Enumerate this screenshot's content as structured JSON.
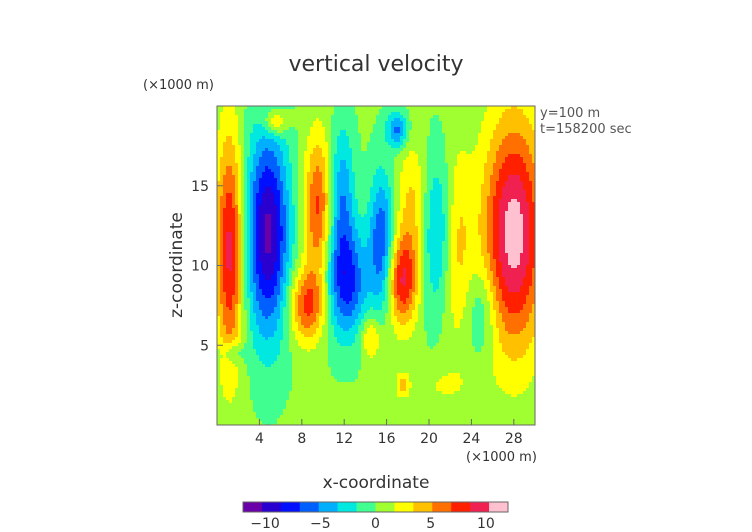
{
  "chart_data": {
    "type": "heatmap",
    "title": "vertical velocity",
    "xlabel": "x-coordinate",
    "ylabel": "z-coordinate",
    "x_unit_label": "(×1000 m)",
    "y_unit_label": "(×1000 m)",
    "annotations": [
      "y=100 m",
      "t=158200 sec"
    ],
    "xlim": [
      0,
      30
    ],
    "ylim": [
      0,
      20
    ],
    "x_ticks": [
      4,
      8,
      12,
      16,
      20,
      24,
      28
    ],
    "y_ticks": [
      5,
      10,
      15
    ],
    "colorbar": {
      "range": [
        -12,
        12
      ],
      "ticks": [
        -10,
        -5,
        0,
        5,
        10
      ],
      "colors": [
        "#6a00a8",
        "#2a00d0",
        "#0010ff",
        "#0060ff",
        "#00b0ff",
        "#00e8e0",
        "#40ff90",
        "#a0ff30",
        "#ffff00",
        "#ffc000",
        "#ff7000",
        "#ff2000",
        "#f02050",
        "#ffc0d0"
      ]
    },
    "features": [
      {
        "x": 4.8,
        "z": 12.0,
        "value": -11,
        "sx": 1.4,
        "sz": 4.5
      },
      {
        "x": 1.2,
        "z": 11.0,
        "value": 9,
        "sx": 0.9,
        "sz": 5.0
      },
      {
        "x": 9.5,
        "z": 13.5,
        "value": 7,
        "sx": 0.9,
        "sz": 3.2
      },
      {
        "x": 8.5,
        "z": 7.5,
        "value": 7,
        "sx": 1.2,
        "sz": 1.6
      },
      {
        "x": 12.2,
        "z": 9.0,
        "value": -8,
        "sx": 1.4,
        "sz": 2.5
      },
      {
        "x": 11.8,
        "z": 14.5,
        "value": -5,
        "sx": 0.8,
        "sz": 3.0
      },
      {
        "x": 17.5,
        "z": 9.0,
        "value": 8,
        "sx": 1.0,
        "sz": 2.0
      },
      {
        "x": 15.5,
        "z": 11.5,
        "value": -7,
        "sx": 0.8,
        "sz": 3.0
      },
      {
        "x": 18.5,
        "z": 13.5,
        "value": 4,
        "sx": 1.0,
        "sz": 3.0
      },
      {
        "x": 21.0,
        "z": 12.0,
        "value": -5,
        "sx": 1.3,
        "sz": 3.5
      },
      {
        "x": 22.5,
        "z": 11.5,
        "value": 5,
        "sx": 1.0,
        "sz": 4.0
      },
      {
        "x": 28.0,
        "z": 12.0,
        "value": 11,
        "sx": 2.0,
        "sz": 5.0
      },
      {
        "x": 25.0,
        "z": 7.0,
        "value": -3,
        "sx": 1.0,
        "sz": 2.0
      },
      {
        "x": 5.5,
        "z": 19.0,
        "value": 5,
        "sx": 0.8,
        "sz": 0.6
      },
      {
        "x": 17.0,
        "z": 18.5,
        "value": -6,
        "sx": 0.7,
        "sz": 0.8
      },
      {
        "x": 1.5,
        "z": 4.5,
        "value": -3,
        "sx": 0.8,
        "sz": 0.5
      },
      {
        "x": 14.5,
        "z": 5.5,
        "value": 4,
        "sx": 0.7,
        "sz": 1.0
      },
      {
        "x": 17.5,
        "z": 2.5,
        "value": 4,
        "sx": 0.4,
        "sz": 0.5
      },
      {
        "x": 21.0,
        "z": 2.5,
        "value": 1.5,
        "sx": 2.5,
        "sz": 1.0
      }
    ]
  }
}
